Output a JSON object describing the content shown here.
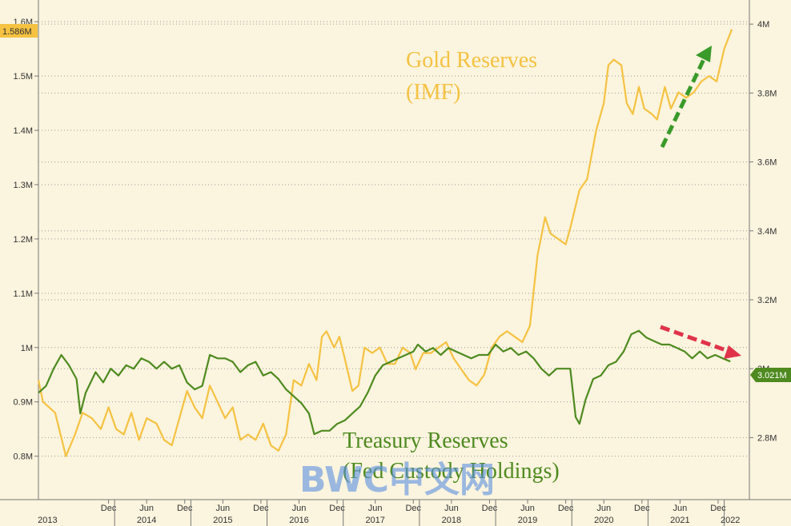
{
  "chart_data": {
    "type": "line",
    "title": "",
    "left_axis": {
      "ticks": [
        "0.8M",
        "0.9M",
        "1M",
        "1.1M",
        "1.2M",
        "1.3M",
        "1.4M",
        "1.5M",
        "1.6M"
      ],
      "tick_values": [
        0.8,
        0.9,
        1.0,
        1.1,
        1.2,
        1.3,
        1.4,
        1.5,
        1.6
      ],
      "ylim": [
        0.72,
        1.64
      ]
    },
    "right_axis": {
      "ticks": [
        "2.8M",
        "3M",
        "3.2M",
        "3.4M",
        "3.6M",
        "3.8M",
        "4M"
      ],
      "tick_values": [
        2.8,
        3.0,
        3.2,
        3.4,
        3.6,
        3.8,
        4.0
      ],
      "ylim": [
        2.62,
        4.07
      ]
    },
    "x_axis": {
      "xlim": [
        2013.0,
        2022.33
      ],
      "month_ticks": [
        {
          "label": "Dec",
          "x": 2013.92
        },
        {
          "label": "Jun",
          "x": 2014.42
        },
        {
          "label": "Dec",
          "x": 2014.92
        },
        {
          "label": "Jun",
          "x": 2015.42
        },
        {
          "label": "Dec",
          "x": 2015.92
        },
        {
          "label": "Jun",
          "x": 2016.42
        },
        {
          "label": "Dec",
          "x": 2016.92
        },
        {
          "label": "Jun",
          "x": 2017.42
        },
        {
          "label": "Dec",
          "x": 2017.92
        },
        {
          "label": "Jun",
          "x": 2018.42
        },
        {
          "label": "Dec",
          "x": 2018.92
        },
        {
          "label": "Jun",
          "x": 2019.42
        },
        {
          "label": "Dec",
          "x": 2019.92
        },
        {
          "label": "Jun",
          "x": 2020.42
        },
        {
          "label": "Dec",
          "x": 2020.92
        },
        {
          "label": "Jun",
          "x": 2021.42
        },
        {
          "label": "Dec",
          "x": 2021.92
        }
      ],
      "year_ticks": [
        {
          "label": "2013",
          "x": 2013.12
        },
        {
          "label": "2014",
          "x": 2014.42
        },
        {
          "label": "2015",
          "x": 2015.42
        },
        {
          "label": "2016",
          "x": 2016.42
        },
        {
          "label": "2017",
          "x": 2017.42
        },
        {
          "label": "2018",
          "x": 2018.42
        },
        {
          "label": "2019",
          "x": 2019.42
        },
        {
          "label": "2020",
          "x": 2020.42
        },
        {
          "label": "2021",
          "x": 2021.42
        },
        {
          "label": "2022",
          "x": 2022.08
        }
      ]
    },
    "series": [
      {
        "name": "Gold Reserves (IMF)",
        "axis": "left",
        "color": "#f5c242",
        "last_label": "1.586M",
        "points": [
          [
            2013.0,
            0.94
          ],
          [
            2013.06,
            0.9
          ],
          [
            2013.22,
            0.88
          ],
          [
            2013.36,
            0.8
          ],
          [
            2013.48,
            0.84
          ],
          [
            2013.58,
            0.88
          ],
          [
            2013.7,
            0.87
          ],
          [
            2013.82,
            0.85
          ],
          [
            2013.92,
            0.89
          ],
          [
            2014.02,
            0.85
          ],
          [
            2014.12,
            0.84
          ],
          [
            2014.22,
            0.88
          ],
          [
            2014.32,
            0.83
          ],
          [
            2014.42,
            0.87
          ],
          [
            2014.55,
            0.86
          ],
          [
            2014.65,
            0.83
          ],
          [
            2014.75,
            0.82
          ],
          [
            2014.85,
            0.87
          ],
          [
            2014.95,
            0.92
          ],
          [
            2015.05,
            0.89
          ],
          [
            2015.15,
            0.87
          ],
          [
            2015.25,
            0.93
          ],
          [
            2015.35,
            0.9
          ],
          [
            2015.45,
            0.87
          ],
          [
            2015.55,
            0.89
          ],
          [
            2015.65,
            0.83
          ],
          [
            2015.75,
            0.84
          ],
          [
            2015.85,
            0.83
          ],
          [
            2015.95,
            0.86
          ],
          [
            2016.05,
            0.82
          ],
          [
            2016.15,
            0.81
          ],
          [
            2016.25,
            0.84
          ],
          [
            2016.35,
            0.94
          ],
          [
            2016.45,
            0.93
          ],
          [
            2016.55,
            0.97
          ],
          [
            2016.65,
            0.94
          ],
          [
            2016.72,
            1.02
          ],
          [
            2016.78,
            1.03
          ],
          [
            2016.88,
            1.0
          ],
          [
            2016.95,
            1.02
          ],
          [
            2017.02,
            0.98
          ],
          [
            2017.12,
            0.92
          ],
          [
            2017.2,
            0.93
          ],
          [
            2017.28,
            1.0
          ],
          [
            2017.38,
            0.99
          ],
          [
            2017.48,
            1.0
          ],
          [
            2017.58,
            0.97
          ],
          [
            2017.68,
            0.97
          ],
          [
            2017.78,
            1.0
          ],
          [
            2017.88,
            0.99
          ],
          [
            2017.95,
            0.96
          ],
          [
            2018.05,
            0.99
          ],
          [
            2018.15,
            0.99
          ],
          [
            2018.25,
            1.0
          ],
          [
            2018.35,
            1.01
          ],
          [
            2018.45,
            0.98
          ],
          [
            2018.55,
            0.96
          ],
          [
            2018.65,
            0.94
          ],
          [
            2018.75,
            0.93
          ],
          [
            2018.85,
            0.95
          ],
          [
            2018.95,
            1.0
          ],
          [
            2019.05,
            1.02
          ],
          [
            2019.15,
            1.03
          ],
          [
            2019.25,
            1.02
          ],
          [
            2019.35,
            1.01
          ],
          [
            2019.45,
            1.04
          ],
          [
            2019.55,
            1.17
          ],
          [
            2019.65,
            1.24
          ],
          [
            2019.72,
            1.21
          ],
          [
            2019.82,
            1.2
          ],
          [
            2019.92,
            1.19
          ],
          [
            2019.98,
            1.22
          ],
          [
            2020.1,
            1.29
          ],
          [
            2020.2,
            1.31
          ],
          [
            2020.32,
            1.4
          ],
          [
            2020.42,
            1.45
          ],
          [
            2020.48,
            1.52
          ],
          [
            2020.55,
            1.53
          ],
          [
            2020.65,
            1.52
          ],
          [
            2020.72,
            1.45
          ],
          [
            2020.8,
            1.43
          ],
          [
            2020.88,
            1.48
          ],
          [
            2020.95,
            1.44
          ],
          [
            2021.05,
            1.43
          ],
          [
            2021.12,
            1.42
          ],
          [
            2021.22,
            1.48
          ],
          [
            2021.3,
            1.44
          ],
          [
            2021.4,
            1.47
          ],
          [
            2021.5,
            1.46
          ],
          [
            2021.6,
            1.47
          ],
          [
            2021.7,
            1.49
          ],
          [
            2021.8,
            1.5
          ],
          [
            2021.9,
            1.49
          ],
          [
            2022.0,
            1.55
          ],
          [
            2022.1,
            1.586
          ]
        ]
      },
      {
        "name": "Treasury Reserves (Fed Custody Holdings)",
        "axis": "right",
        "color": "#4e8a1f",
        "last_label": "3.021M",
        "points": [
          [
            2013.0,
            2.93
          ],
          [
            2013.1,
            2.95
          ],
          [
            2013.2,
            3.0
          ],
          [
            2013.3,
            3.04
          ],
          [
            2013.4,
            3.01
          ],
          [
            2013.5,
            2.97
          ],
          [
            2013.55,
            2.87
          ],
          [
            2013.62,
            2.93
          ],
          [
            2013.75,
            2.99
          ],
          [
            2013.85,
            2.96
          ],
          [
            2013.95,
            3.0
          ],
          [
            2014.05,
            2.98
          ],
          [
            2014.15,
            3.01
          ],
          [
            2014.25,
            3.0
          ],
          [
            2014.35,
            3.03
          ],
          [
            2014.45,
            3.02
          ],
          [
            2014.55,
            3.0
          ],
          [
            2014.65,
            3.02
          ],
          [
            2014.75,
            3.0
          ],
          [
            2014.85,
            3.01
          ],
          [
            2014.95,
            2.96
          ],
          [
            2015.05,
            2.94
          ],
          [
            2015.15,
            2.95
          ],
          [
            2015.25,
            3.04
          ],
          [
            2015.35,
            3.03
          ],
          [
            2015.45,
            3.03
          ],
          [
            2015.55,
            3.02
          ],
          [
            2015.65,
            2.99
          ],
          [
            2015.75,
            3.01
          ],
          [
            2015.85,
            3.02
          ],
          [
            2015.95,
            2.98
          ],
          [
            2016.05,
            2.99
          ],
          [
            2016.15,
            2.97
          ],
          [
            2016.25,
            2.94
          ],
          [
            2016.35,
            2.92
          ],
          [
            2016.45,
            2.9
          ],
          [
            2016.55,
            2.87
          ],
          [
            2016.62,
            2.81
          ],
          [
            2016.72,
            2.82
          ],
          [
            2016.82,
            2.82
          ],
          [
            2016.92,
            2.84
          ],
          [
            2017.02,
            2.85
          ],
          [
            2017.12,
            2.87
          ],
          [
            2017.22,
            2.89
          ],
          [
            2017.32,
            2.93
          ],
          [
            2017.42,
            2.98
          ],
          [
            2017.52,
            3.01
          ],
          [
            2017.62,
            3.02
          ],
          [
            2017.72,
            3.03
          ],
          [
            2017.82,
            3.04
          ],
          [
            2017.92,
            3.05
          ],
          [
            2017.98,
            3.07
          ],
          [
            2018.08,
            3.05
          ],
          [
            2018.18,
            3.06
          ],
          [
            2018.28,
            3.04
          ],
          [
            2018.38,
            3.06
          ],
          [
            2018.48,
            3.05
          ],
          [
            2018.58,
            3.04
          ],
          [
            2018.68,
            3.03
          ],
          [
            2018.78,
            3.04
          ],
          [
            2018.9,
            3.04
          ],
          [
            2019.0,
            3.07
          ],
          [
            2019.1,
            3.05
          ],
          [
            2019.2,
            3.06
          ],
          [
            2019.3,
            3.04
          ],
          [
            2019.4,
            3.05
          ],
          [
            2019.5,
            3.03
          ],
          [
            2019.6,
            3.0
          ],
          [
            2019.7,
            2.98
          ],
          [
            2019.8,
            3.0
          ],
          [
            2019.9,
            3.0
          ],
          [
            2019.98,
            3.0
          ],
          [
            2020.05,
            2.86
          ],
          [
            2020.1,
            2.84
          ],
          [
            2020.18,
            2.91
          ],
          [
            2020.28,
            2.97
          ],
          [
            2020.38,
            2.98
          ],
          [
            2020.48,
            3.01
          ],
          [
            2020.58,
            3.02
          ],
          [
            2020.68,
            3.05
          ],
          [
            2020.78,
            3.1
          ],
          [
            2020.88,
            3.11
          ],
          [
            2020.98,
            3.09
          ],
          [
            2021.08,
            3.08
          ],
          [
            2021.18,
            3.07
          ],
          [
            2021.28,
            3.07
          ],
          [
            2021.38,
            3.06
          ],
          [
            2021.48,
            3.05
          ],
          [
            2021.58,
            3.03
          ],
          [
            2021.68,
            3.05
          ],
          [
            2021.78,
            3.03
          ],
          [
            2021.88,
            3.04
          ],
          [
            2021.98,
            3.03
          ],
          [
            2022.08,
            3.021
          ]
        ]
      }
    ],
    "annotations": {
      "gold_label_line1": "Gold Reserves",
      "gold_label_line2": "(IMF)",
      "treasury_label_line1": "Treasury Reserves",
      "treasury_label_line2": "(Fed Custody Holdings)",
      "gold_arrow_color": "#3a9a2a",
      "treasury_arrow_color": "#e0334a"
    },
    "watermark": "BWC中文网",
    "grid": true
  }
}
